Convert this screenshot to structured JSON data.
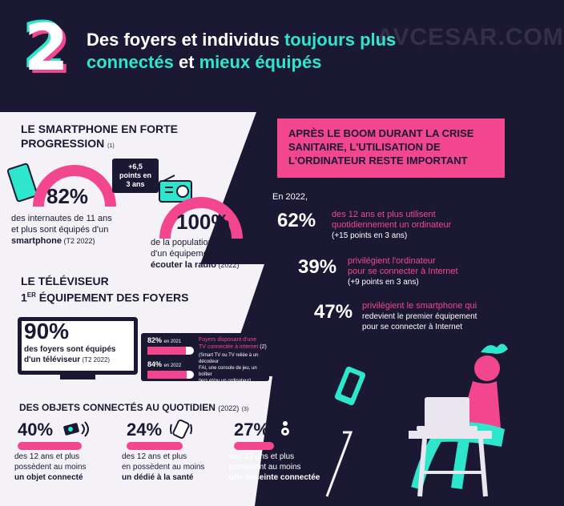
{
  "header": {
    "number": "2",
    "title_part1": "Des foyers et individus ",
    "title_accent1": "toujours plus",
    "title_accent2": "connectés",
    "title_part2": " et ",
    "title_accent3": "mieux équipés"
  },
  "watermark": "AVCESAR.COM",
  "smartphone": {
    "heading_line1": "LE SMARTPHONE EN FORTE",
    "heading_line2": "PROGRESSION",
    "note": "(1)",
    "pct": "82%",
    "bubble": "+6,5 points en 3 ans",
    "desc1": "des internautes de 11 ans",
    "desc2": "et plus sont équipés d'un",
    "desc3_bold": "smartphone",
    "desc3_rest": " (T2 2022)"
  },
  "radio": {
    "pct": "100%",
    "desc1": "de la population dispose",
    "desc2": "d'un équipement pour",
    "desc3_bold": "écouter la radio",
    "desc3_rest": " (2022)"
  },
  "tv": {
    "heading_line1": "LE TÉLÉVISEUR",
    "heading_line2_pre": "1",
    "heading_line2_sup": "ER",
    "heading_line2_post": " ÉQUIPEMENT DES FOYERS",
    "pct": "90%",
    "desc1": "des foyers sont équipés",
    "desc2_bold": "d'un téléviseur",
    "desc2_rest": " (T2 2022)",
    "bar_2021_pct": "82%",
    "bar_2021_year": "en 2021",
    "bar_2021_value": 0.82,
    "bar_2022_pct": "84%",
    "bar_2022_year": "en 2022",
    "bar_2022_value": 0.84,
    "connected_title1": "Foyers disposant d'une",
    "connected_title2": "TV connectée à internet",
    "connected_note": "(2)",
    "connected_desc1": "(Smart TV ou TV reliée à un décodeur",
    "connected_desc2": "FAI, une console de jeu, un boîtier",
    "connected_desc3": "tiers et/ou un ordinateur)"
  },
  "objects": {
    "heading": "DES OBJETS CONNECTÉS AU QUOTIDIEN",
    "year": "(2022)",
    "note": "(3)",
    "items": [
      {
        "pct": "40%",
        "l1": "des 12 ans et plus",
        "l2": "possèdent au moins",
        "l3": "un objet connecté",
        "icon": "camera-icon"
      },
      {
        "pct": "24%",
        "l1": "des 12 ans et plus",
        "l2": "en possèdent au moins",
        "l3": "un dédié à la santé",
        "icon": "smartwatch-icon"
      },
      {
        "pct": "27%",
        "l1": "des 12 ans et plus",
        "l2": "possèdent au moins",
        "l3": "une enceinte connectée",
        "icon": "speaker-icon"
      }
    ]
  },
  "computer": {
    "box_line1": "APRÈS LE BOOM DURANT LA CRISE",
    "box_line2": "SANITAIRE, L'UTILISATION DE",
    "box_line3": "L'ORDINATEUR RESTE IMPORTANT",
    "intro": "En 2022,",
    "stats": [
      {
        "pct": "62%",
        "l1": "des 12 ans et plus utilisent",
        "l2": "quotidiennement un ordinateur",
        "l3": "(+15 points en 3 ans)"
      },
      {
        "pct": "39%",
        "l1": "privilégient l'ordinateur",
        "l2": "pour se connecter à Internet",
        "l3": "(+9 points en 3 ans)"
      },
      {
        "pct": "47%",
        "l1": "privilégient le smartphone qui",
        "l2": "redevient le premier équipement",
        "l3": "pour se connecter à Internet"
      }
    ]
  },
  "colors": {
    "bg": "#1b1833",
    "pink": "#f2478f",
    "teal": "#2ee6cc",
    "panel": "#f4f2f6"
  }
}
